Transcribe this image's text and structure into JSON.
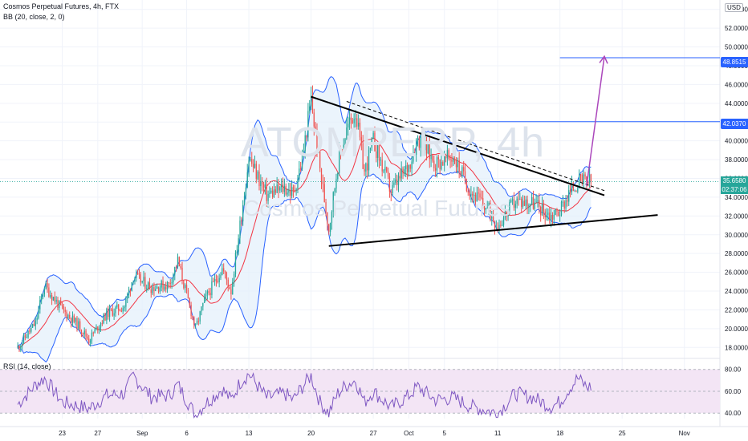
{
  "header": {
    "symbol_line": "Cosmos Perpetual Futures, 4h, FTX",
    "indicator_bb": "BB (20, close, 2, 0)",
    "indicator_rsi": "RSI (14, close)"
  },
  "watermark": {
    "symbol": "ATOMPERP, 4h",
    "name": "Cosmos Perpetual Futures"
  },
  "currency_badge": "USD",
  "price_tags": {
    "target": "48.8515",
    "level": "42.0370",
    "last_price": "35.6580",
    "countdown": "02:37:06"
  },
  "colors": {
    "up": "#26a69a",
    "down": "#ef5350",
    "bb_band": "#2962ff",
    "bb_basis": "#f23645",
    "bb_fill": "#e3f0fb",
    "rsi_line": "#7e57c2",
    "rsi_fill": "#f3e5f5",
    "pattern": "#000000",
    "arrow": "#ab47bc",
    "hline": "#2962ff"
  },
  "chart_data": {
    "type": "candlestick",
    "symbol": "Cosmos Perpetual Futures",
    "timeframe": "4h",
    "exchange": "FTX",
    "y_ticks": [
      "54.0000",
      "52.0000",
      "50.0000",
      "48.0000",
      "46.0000",
      "44.0000",
      "42.0000",
      "40.0000",
      "38.0000",
      "36.0000",
      "34.0000",
      "32.0000",
      "30.0000",
      "28.0000",
      "26.0000",
      "24.0000",
      "22.0000",
      "20.0000",
      "18.0000"
    ],
    "ylim": [
      17.0,
      55.0
    ],
    "x_ticks": [
      "23",
      "27",
      "Sep",
      "6",
      "13",
      "20",
      "27",
      "Oct",
      "5",
      "11",
      "18",
      "25",
      "Nov"
    ],
    "x_tick_dates": [
      "2021-08-23",
      "2021-08-27",
      "2021-09-01",
      "2021-09-06",
      "2021-09-13",
      "2021-09-20",
      "2021-09-27",
      "2021-10-01",
      "2021-10-05",
      "2021-10-11",
      "2021-10-18",
      "2021-10-25",
      "2021-11-01"
    ],
    "close_trend": [
      [
        "2021-08-18",
        18.0
      ],
      [
        "2021-08-20",
        20.6
      ],
      [
        "2021-08-21",
        24.6
      ],
      [
        "2021-08-23",
        22.0
      ],
      [
        "2021-08-25",
        20.2
      ],
      [
        "2021-08-26",
        18.8
      ],
      [
        "2021-08-28",
        21.6
      ],
      [
        "2021-08-30",
        22.4
      ],
      [
        "2021-08-31",
        25.6
      ],
      [
        "2021-09-02",
        24.4
      ],
      [
        "2021-09-04",
        24.7
      ],
      [
        "2021-09-05",
        27.2
      ],
      [
        "2021-09-07",
        20.0
      ],
      [
        "2021-09-08",
        23.0
      ],
      [
        "2021-09-10",
        26.4
      ],
      [
        "2021-09-11",
        24.0
      ],
      [
        "2021-09-12",
        31.0
      ],
      [
        "2021-09-13",
        38.2
      ],
      [
        "2021-09-15",
        34.2
      ],
      [
        "2021-09-17",
        35.0
      ],
      [
        "2021-09-18",
        34.4
      ],
      [
        "2021-09-19",
        38.0
      ],
      [
        "2021-09-20",
        44.4
      ],
      [
        "2021-09-21",
        37.0
      ],
      [
        "2021-09-22",
        30.6
      ],
      [
        "2021-09-23",
        37.5
      ],
      [
        "2021-09-24",
        41.2
      ],
      [
        "2021-09-25",
        43.2
      ],
      [
        "2021-09-26",
        36.6
      ],
      [
        "2021-09-27",
        40.0
      ],
      [
        "2021-09-29",
        34.6
      ],
      [
        "2021-10-01",
        37.4
      ],
      [
        "2021-10-02",
        40.4
      ],
      [
        "2021-10-04",
        37.6
      ],
      [
        "2021-10-06",
        38.3
      ],
      [
        "2021-10-08",
        34.6
      ],
      [
        "2021-10-10",
        32.6
      ],
      [
        "2021-10-11",
        31.0
      ],
      [
        "2021-10-13",
        33.6
      ],
      [
        "2021-10-15",
        33.4
      ],
      [
        "2021-10-17",
        32.0
      ],
      [
        "2021-10-18",
        32.6
      ],
      [
        "2021-10-19",
        34.4
      ],
      [
        "2021-10-20",
        35.6
      ],
      [
        "2021-10-21",
        35.66
      ]
    ],
    "bollinger_bands": {
      "period": 20,
      "source": "close",
      "stddev": 2,
      "offset": 0
    },
    "rsi": {
      "period": 14,
      "source": "close",
      "levels": [
        40,
        60,
        80
      ],
      "ylim": [
        35,
        82
      ],
      "points": [
        [
          "2021-08-18",
          48
        ],
        [
          "2021-08-20",
          66
        ],
        [
          "2021-08-21",
          72
        ],
        [
          "2021-08-23",
          50
        ],
        [
          "2021-08-25",
          46
        ],
        [
          "2021-08-26",
          44
        ],
        [
          "2021-08-28",
          56
        ],
        [
          "2021-08-30",
          58
        ],
        [
          "2021-08-31",
          74
        ],
        [
          "2021-09-02",
          55
        ],
        [
          "2021-09-04",
          56
        ],
        [
          "2021-09-05",
          66
        ],
        [
          "2021-09-07",
          38
        ],
        [
          "2021-09-08",
          48
        ],
        [
          "2021-09-10",
          62
        ],
        [
          "2021-09-11",
          52
        ],
        [
          "2021-09-12",
          68
        ],
        [
          "2021-09-13",
          76
        ],
        [
          "2021-09-15",
          54
        ],
        [
          "2021-09-17",
          58
        ],
        [
          "2021-09-18",
          52
        ],
        [
          "2021-09-19",
          64
        ],
        [
          "2021-09-20",
          74
        ],
        [
          "2021-09-21",
          50
        ],
        [
          "2021-09-22",
          40
        ],
        [
          "2021-09-23",
          58
        ],
        [
          "2021-09-24",
          66
        ],
        [
          "2021-09-25",
          70
        ],
        [
          "2021-09-26",
          50
        ],
        [
          "2021-09-27",
          60
        ],
        [
          "2021-09-29",
          45
        ],
        [
          "2021-10-01",
          56
        ],
        [
          "2021-10-02",
          64
        ],
        [
          "2021-10-04",
          52
        ],
        [
          "2021-10-06",
          54
        ],
        [
          "2021-10-08",
          46
        ],
        [
          "2021-10-10",
          42
        ],
        [
          "2021-10-11",
          40
        ],
        [
          "2021-10-13",
          58
        ],
        [
          "2021-10-15",
          54
        ],
        [
          "2021-10-17",
          46
        ],
        [
          "2021-10-18",
          50
        ],
        [
          "2021-10-19",
          62
        ],
        [
          "2021-10-20",
          72
        ],
        [
          "2021-10-21",
          64
        ]
      ]
    },
    "drawings": {
      "triangle_upper": [
        [
          "2021-09-20",
          44.7
        ],
        [
          "2021-10-23",
          34.2
        ]
      ],
      "triangle_lower": [
        [
          "2021-09-22",
          28.8
        ],
        [
          "2021-10-29",
          32.1
        ]
      ],
      "dashed_trend": [
        [
          "2021-09-24",
          44.2
        ],
        [
          "2021-10-23",
          34.7
        ]
      ],
      "projection_arrow": [
        [
          "2021-10-21",
          35.2
        ],
        [
          "2021-10-23",
          49.0
        ]
      ],
      "target_line": {
        "from": "2021-10-18",
        "value": 48.8515
      },
      "level_line": {
        "from": "2021-10-01",
        "value": 42.037
      },
      "last_price_line": 35.658
    }
  }
}
